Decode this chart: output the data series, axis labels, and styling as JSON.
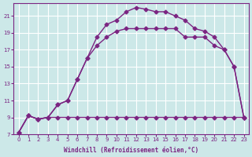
{
  "background_color": "#cce8e8",
  "grid_color": "#ffffff",
  "line_color": "#7b2582",
  "marker": "D",
  "markersize": 2.5,
  "linewidth": 1.0,
  "xlim": [
    -0.5,
    23.5
  ],
  "ylim": [
    7,
    22.5
  ],
  "xticks": [
    0,
    1,
    2,
    3,
    4,
    5,
    6,
    7,
    8,
    9,
    10,
    11,
    12,
    13,
    14,
    15,
    16,
    17,
    18,
    19,
    20,
    21,
    22,
    23
  ],
  "yticks": [
    7,
    9,
    11,
    13,
    15,
    17,
    19,
    21
  ],
  "xlabel": "Windchill (Refroidissement éolien,°C)",
  "series": [
    {
      "x": [
        0,
        1,
        2,
        3,
        4,
        5,
        6,
        7,
        8,
        9,
        10,
        11,
        12,
        13,
        14,
        15,
        16,
        17,
        18,
        19,
        20,
        21,
        22,
        23
      ],
      "y": [
        7.2,
        9.2,
        8.8,
        9.0,
        9.0,
        9.0,
        9.0,
        9.0,
        9.0,
        9.0,
        9.0,
        9.0,
        9.0,
        9.0,
        9.0,
        9.0,
        9.0,
        9.0,
        9.0,
        9.0,
        9.0,
        9.0,
        9.0,
        9.0
      ]
    },
    {
      "x": [
        0,
        1,
        2,
        3,
        4,
        5,
        6,
        7,
        8,
        9,
        10,
        11,
        12,
        13,
        14,
        15,
        16,
        17,
        18,
        19,
        20,
        21,
        22,
        23
      ],
      "y": [
        7.2,
        9.2,
        8.8,
        9.0,
        10.5,
        11.0,
        13.5,
        16.0,
        17.5,
        18.5,
        19.2,
        19.5,
        19.5,
        19.5,
        19.5,
        19.5,
        19.5,
        18.5,
        18.5,
        18.5,
        17.5,
        17.0,
        15.0,
        9.0
      ]
    },
    {
      "x": [
        0,
        1,
        2,
        3,
        4,
        5,
        6,
        7,
        8,
        9,
        10,
        11,
        12,
        13,
        14,
        15,
        16,
        17,
        18,
        19,
        20,
        21,
        22,
        23
      ],
      "y": [
        7.2,
        9.2,
        8.8,
        9.0,
        10.5,
        11.0,
        13.5,
        16.0,
        18.5,
        20.0,
        20.5,
        21.5,
        22.0,
        21.8,
        21.5,
        21.5,
        21.0,
        20.5,
        19.5,
        19.2,
        18.5,
        17.0,
        15.0,
        9.0
      ]
    }
  ]
}
